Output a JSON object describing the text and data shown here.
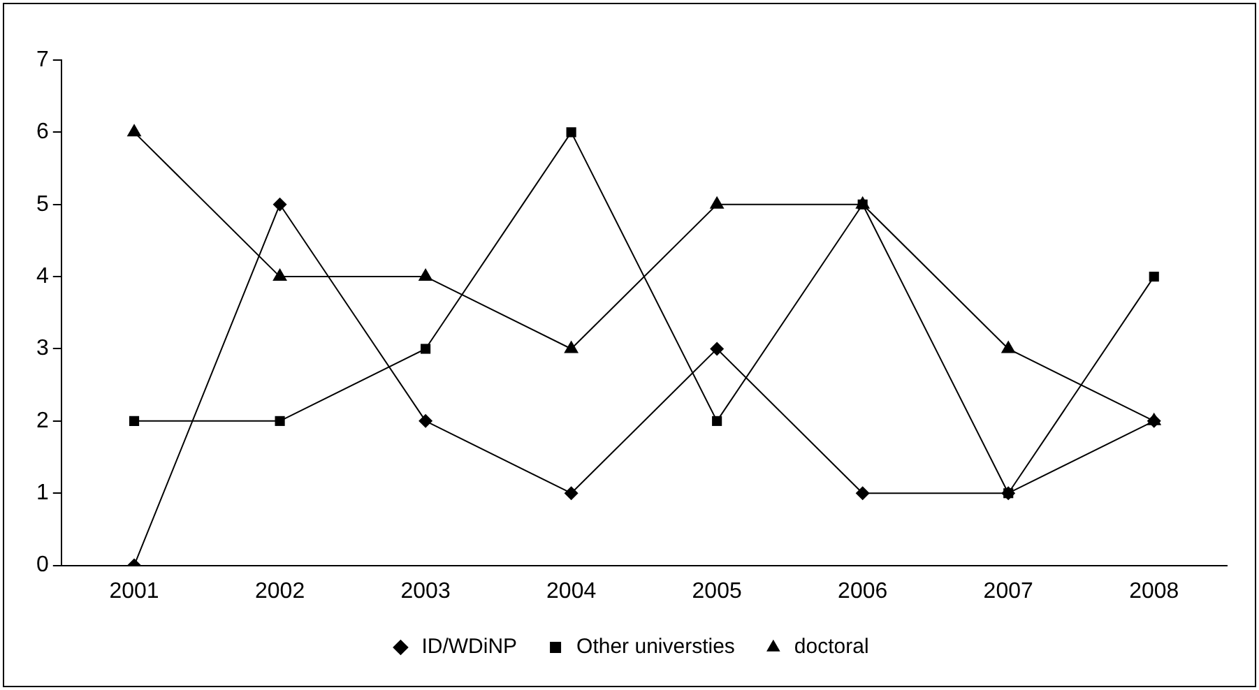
{
  "chart_data": {
    "type": "line",
    "categories": [
      "2001",
      "2002",
      "2003",
      "2004",
      "2005",
      "2006",
      "2007",
      "2008"
    ],
    "ylim": [
      0,
      7
    ],
    "yticks": [
      0,
      1,
      2,
      3,
      4,
      5,
      6,
      7
    ],
    "grid": false,
    "legend": "bottom",
    "line_style": "solid",
    "series": [
      {
        "name": "ID/WDiNP",
        "color": "#000000",
        "marker": "diamond",
        "values": [
          0,
          5,
          2,
          1,
          3,
          1,
          1,
          2
        ]
      },
      {
        "name": "Other universties",
        "color": "#000000",
        "marker": "square",
        "values": [
          2,
          2,
          3,
          6,
          2,
          5,
          1,
          4
        ]
      },
      {
        "name": "doctoral",
        "color": "#000000",
        "marker": "triangle",
        "values": [
          6,
          4,
          4,
          3,
          5,
          5,
          3,
          2
        ]
      }
    ]
  }
}
